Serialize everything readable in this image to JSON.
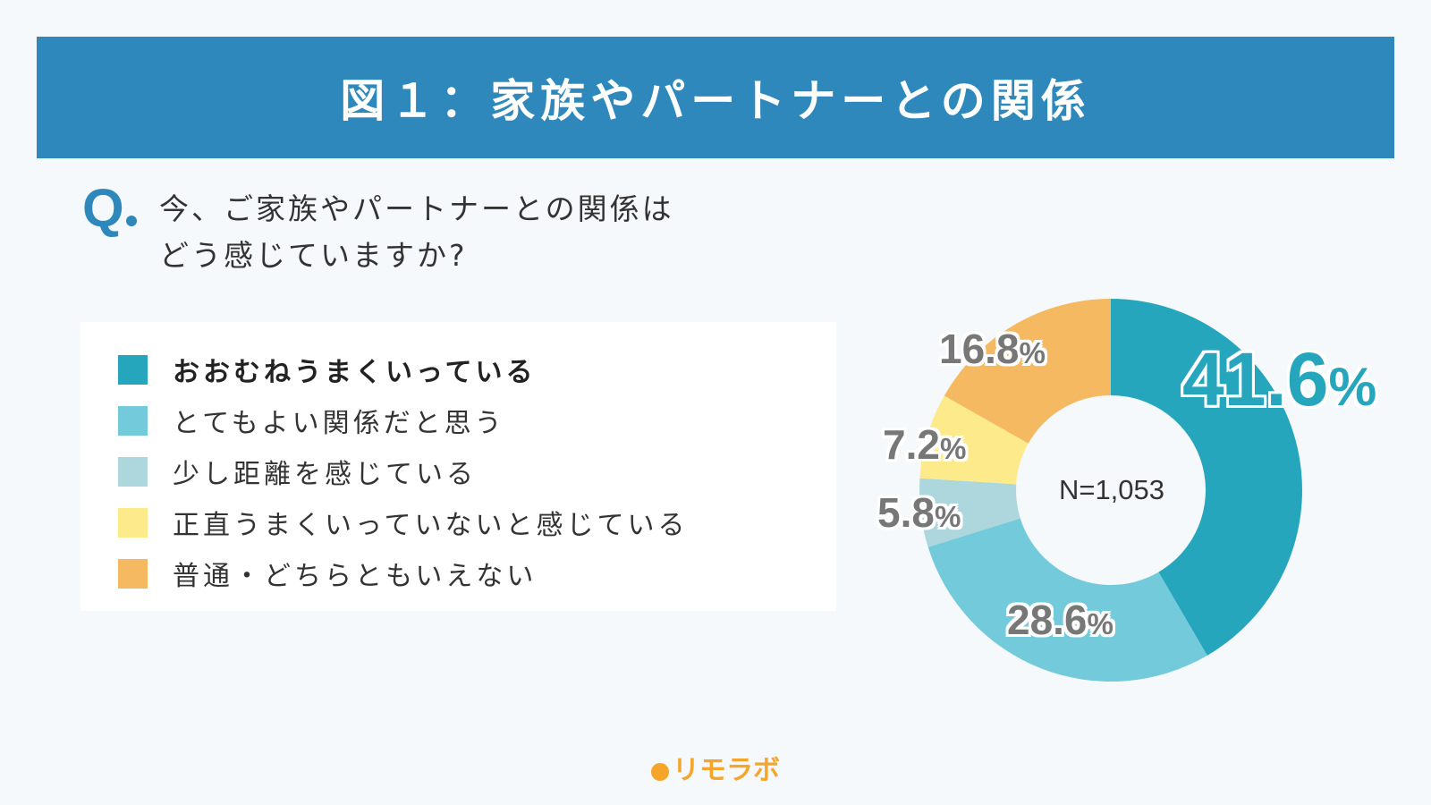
{
  "header": {
    "title": "図１：家族やパートナーとの関係"
  },
  "question": {
    "mark": "Q",
    "line1": "今、ご家族やパートナーとの関係は",
    "line2": "どう感じていますか?"
  },
  "legend": [
    {
      "label": "おおむねうまくいっている",
      "color": "#26a6bd"
    },
    {
      "label": "とてもよい関係だと思う",
      "color": "#72cadb"
    },
    {
      "label": "少し距離を感じている",
      "color": "#aed6dd"
    },
    {
      "label": "正直うまくいっていないと感じている",
      "color": "#fdea8a"
    },
    {
      "label": "普通・どちらともいえない",
      "color": "#f5b961"
    }
  ],
  "chart_data": {
    "type": "pie",
    "donut": true,
    "center_label": "N=1,053",
    "categories": [
      "おおむねうまくいっている",
      "とてもよい関係だと思う",
      "少し距離を感じている",
      "正直うまくいっていないと感じている",
      "普通・どちらともいえない"
    ],
    "values": [
      41.6,
      28.6,
      5.8,
      7.2,
      16.8
    ],
    "value_labels": [
      "41.6",
      "28.6",
      "5.8",
      "7.2",
      "16.8"
    ],
    "unit": "%",
    "colors": [
      "#26a6bd",
      "#72cadb",
      "#aed6dd",
      "#fdea8a",
      "#f5b961"
    ]
  },
  "footer": {
    "brand": "リモラボ"
  }
}
